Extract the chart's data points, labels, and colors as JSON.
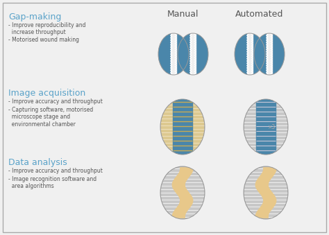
{
  "bg_color": "#f0f0f0",
  "border_color": "#aaaaaa",
  "col_headers": [
    "Manual",
    "Automated"
  ],
  "col_header_color": "#555555",
  "col_header_fontsize": 9,
  "rows": [
    {
      "label": "Gap-making",
      "label_color": "#5ba3c9",
      "label_fontsize": 9,
      "bullets": [
        "Improve reproducibility and\n  increase throughput",
        "Motorised wound making"
      ],
      "bullet_fontsize": 5.5,
      "bullet_color": "#555555"
    },
    {
      "label": "Image acquisition",
      "label_color": "#5ba3c9",
      "label_fontsize": 9,
      "bullets": [
        "Improve accuracy and throughput",
        "Capturing software, motorised\n  microscope stage and\n  environmental chamber"
      ],
      "bullet_fontsize": 5.5,
      "bullet_color": "#555555"
    },
    {
      "label": "Data analysis",
      "label_color": "#5ba3c9",
      "label_fontsize": 9,
      "bullets": [
        "Improve accuracy and throughput",
        "Image recognition software and\n  area algorithms"
      ],
      "bullet_fontsize": 5.5,
      "bullet_color": "#555555"
    }
  ],
  "blue_color": "#4a86aa",
  "tan_color": "#e8c88a",
  "hatch_bg": "#c8c8c8",
  "hatch_line": "#ffffff",
  "border_line": "#999999"
}
